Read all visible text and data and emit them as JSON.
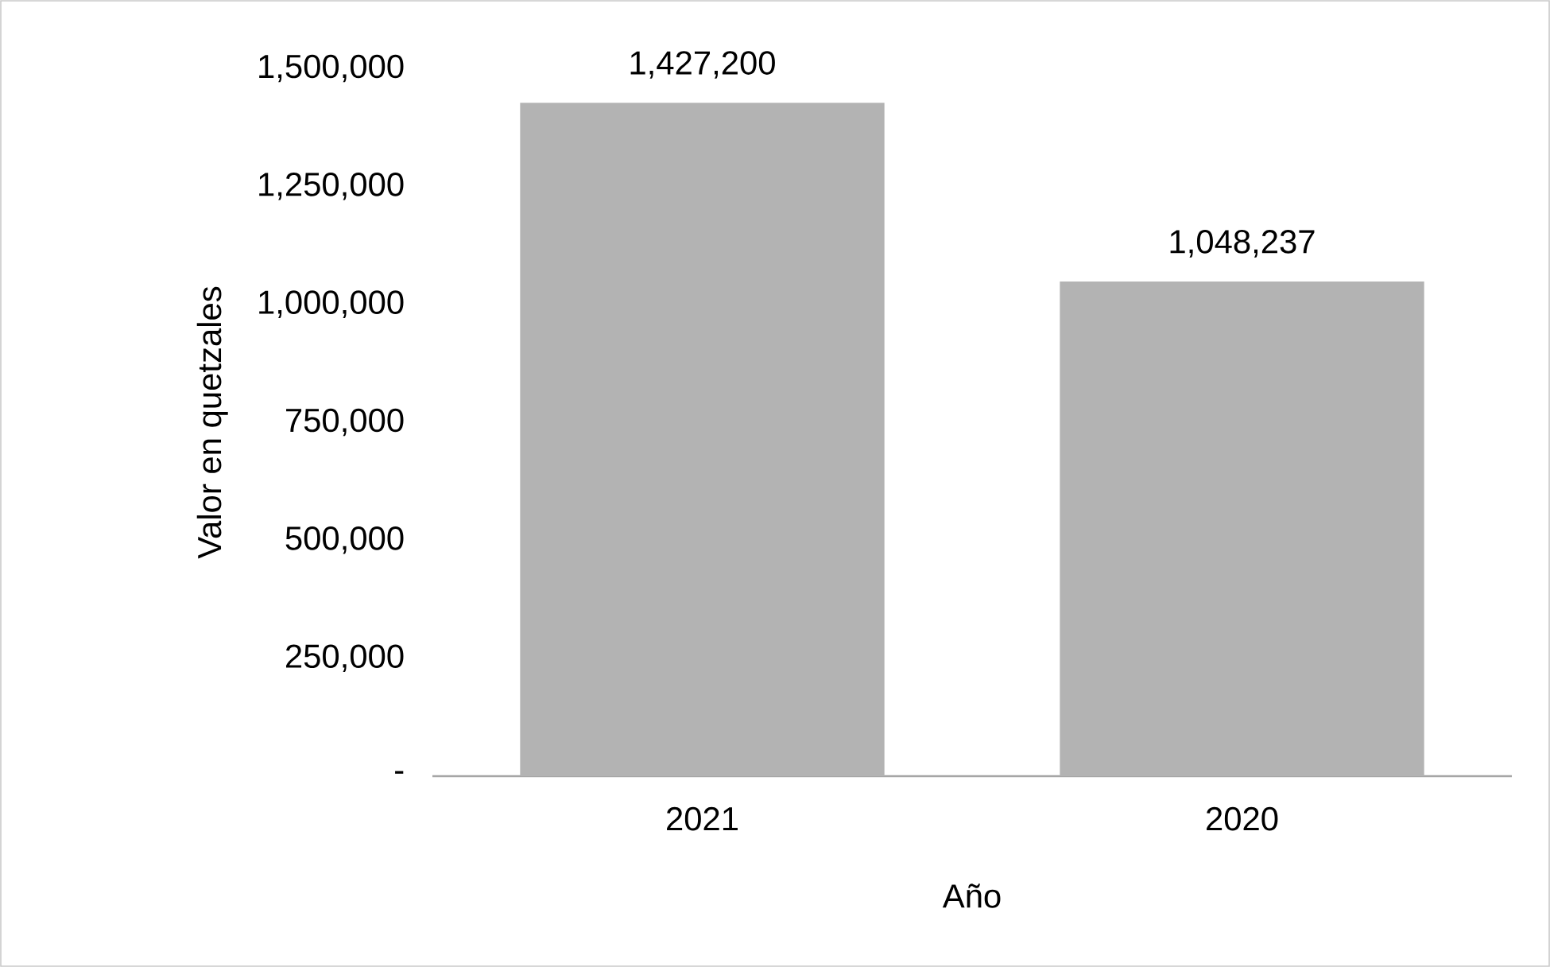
{
  "chart_data": {
    "type": "bar",
    "xlabel": "Año",
    "ylabel": "Valor en quetzales",
    "categories": [
      "2021",
      "2020"
    ],
    "values": [
      1427200,
      1048237
    ],
    "value_labels": [
      "1,427,200",
      "1,048,237"
    ],
    "color": "#b3b3b3",
    "ylim": [
      0,
      1500000
    ],
    "yticks": [
      {
        "value": 0,
        "label": "-"
      },
      {
        "value": 250000,
        "label": "250,000"
      },
      {
        "value": 500000,
        "label": "500,000"
      },
      {
        "value": 750000,
        "label": "750,000"
      },
      {
        "value": 1000000,
        "label": "1,000,000"
      },
      {
        "value": 1250000,
        "label": "1,250,000"
      },
      {
        "value": 1500000,
        "label": "1,500,000"
      }
    ]
  }
}
